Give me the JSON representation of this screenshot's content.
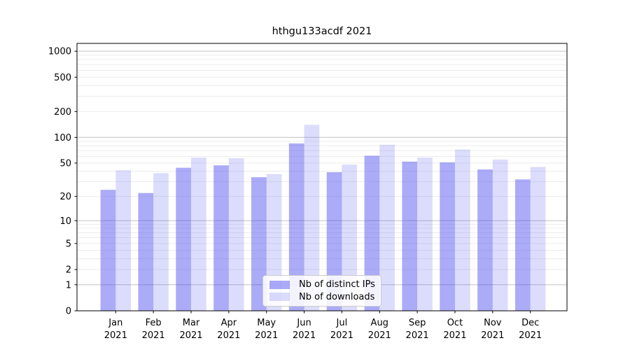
{
  "chart_data": {
    "type": "bar",
    "title": "hthgu133acdf 2021",
    "categories": [
      "Jan",
      "Feb",
      "Mar",
      "Apr",
      "May",
      "Jun",
      "Jul",
      "Aug",
      "Sep",
      "Oct",
      "Nov",
      "Dec"
    ],
    "year": "2021",
    "series": [
      {
        "name": "Nb of distinct IPs",
        "color": "rgba(68,68,238,0.45)",
        "color_hex_on_white": "#abacf7",
        "values": [
          24,
          22,
          44,
          47,
          34,
          85,
          39,
          61,
          52,
          51,
          42,
          32
        ]
      },
      {
        "name": "Nb of downloads",
        "color": "rgba(68,68,238,0.19)",
        "color_hex_on_white": "#dcdcf9",
        "values": [
          41,
          38,
          58,
          57,
          37,
          140,
          48,
          82,
          58,
          72,
          55,
          45
        ]
      }
    ],
    "y_axis": {
      "scale": "log10(1+y)",
      "ticks": [
        0,
        1,
        2,
        5,
        10,
        20,
        50,
        100,
        200,
        500,
        1000
      ],
      "range": [
        0,
        1230
      ]
    },
    "x_axis": {
      "tick_label_line1": [
        "Jan",
        "Feb",
        "Mar",
        "Apr",
        "May",
        "Jun",
        "Jul",
        "Aug",
        "Sep",
        "Oct",
        "Nov",
        "Dec"
      ],
      "tick_label_line2": "2021"
    },
    "legend_position": "lower center",
    "grid": true,
    "colors": {
      "grid_minor": "#ececec",
      "grid_major": "#c2c2c2",
      "axis": "#000000",
      "text": "#000000",
      "background": "#ffffff"
    }
  }
}
